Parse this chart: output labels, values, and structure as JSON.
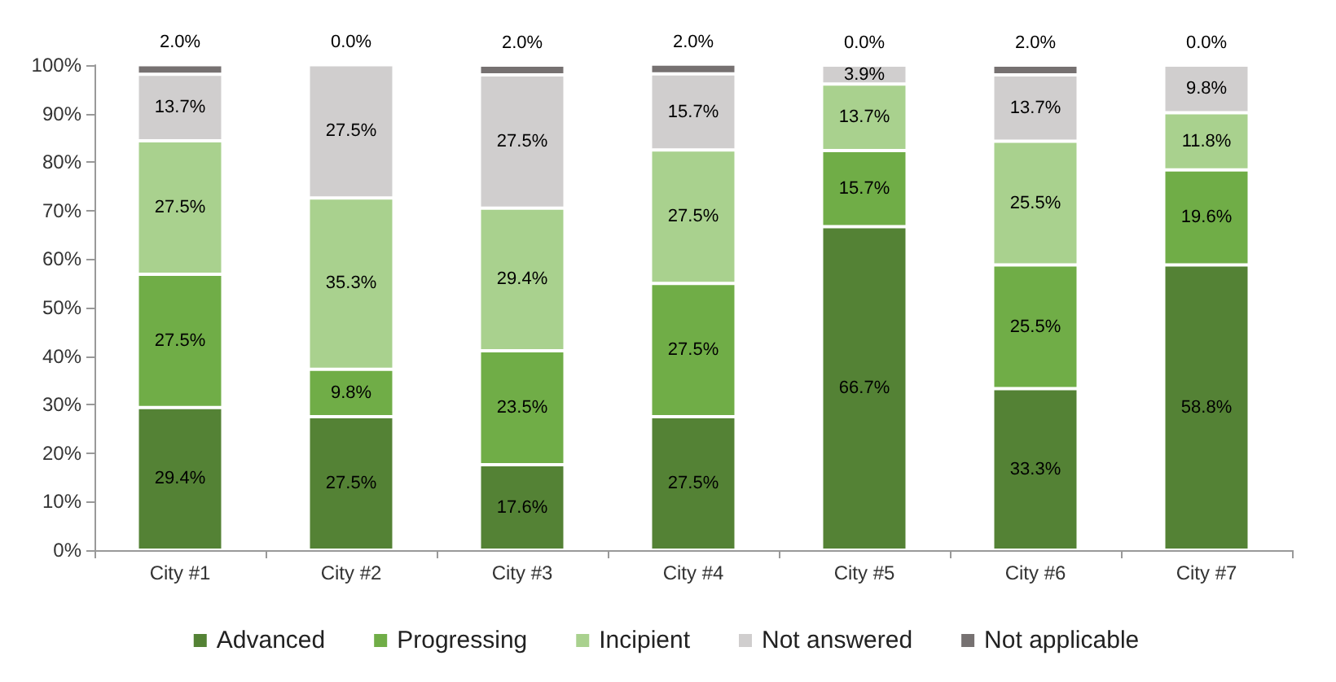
{
  "chart_data": {
    "type": "bar",
    "stacked": true,
    "categories": [
      "City #1",
      "City #2",
      "City #3",
      "City #4",
      "City #5",
      "City #6",
      "City #7"
    ],
    "series": [
      {
        "name": "Advanced",
        "color": "#548235",
        "values": [
          29.4,
          27.5,
          17.6,
          27.5,
          66.7,
          33.3,
          58.8
        ],
        "value_labels": [
          "29.4%",
          "27.5%",
          "17.6%",
          "27.5%",
          "66.7%",
          "33.3%",
          "58.8%"
        ]
      },
      {
        "name": "Progressing",
        "color": "#70ad47",
        "values": [
          27.5,
          9.8,
          23.5,
          27.5,
          15.7,
          25.5,
          19.6
        ],
        "value_labels": [
          "27.5%",
          "9.8%",
          "23.5%",
          "27.5%",
          "15.7%",
          "25.5%",
          "19.6%"
        ]
      },
      {
        "name": "Incipient",
        "color": "#a9d18e",
        "values": [
          27.5,
          35.3,
          29.4,
          27.5,
          13.7,
          25.5,
          11.8
        ],
        "value_labels": [
          "27.5%",
          "35.3%",
          "29.4%",
          "27.5%",
          "13.7%",
          "25.5%",
          "11.8%"
        ]
      },
      {
        "name": "Not answered",
        "color": "#d0cece",
        "values": [
          13.7,
          27.5,
          27.5,
          15.7,
          3.9,
          13.7,
          9.8
        ],
        "value_labels": [
          "13.7%",
          "27.5%",
          "27.5%",
          "15.7%",
          "3.9%",
          "13.7%",
          "9.8%"
        ]
      },
      {
        "name": "Not applicable",
        "color": "#767171",
        "values": [
          2.0,
          0.0,
          2.0,
          2.0,
          0.0,
          2.0,
          0.0
        ],
        "value_labels": [
          "2.0%",
          "0.0%",
          "2.0%",
          "2.0%",
          "0.0%",
          "2.0%",
          "0.0%"
        ]
      }
    ],
    "ylim": [
      0,
      100
    ],
    "yticks": [
      {
        "value": 0,
        "label": "0%"
      },
      {
        "value": 10,
        "label": "10%"
      },
      {
        "value": 20,
        "label": "20%"
      },
      {
        "value": 30,
        "label": "30%"
      },
      {
        "value": 40,
        "label": "40%"
      },
      {
        "value": 50,
        "label": "50%"
      },
      {
        "value": 60,
        "label": "60%"
      },
      {
        "value": 70,
        "label": "70%"
      },
      {
        "value": 80,
        "label": "80%"
      },
      {
        "value": 90,
        "label": "90%"
      },
      {
        "value": 100,
        "label": "100%"
      }
    ],
    "grid": false,
    "legend": "bottom"
  }
}
